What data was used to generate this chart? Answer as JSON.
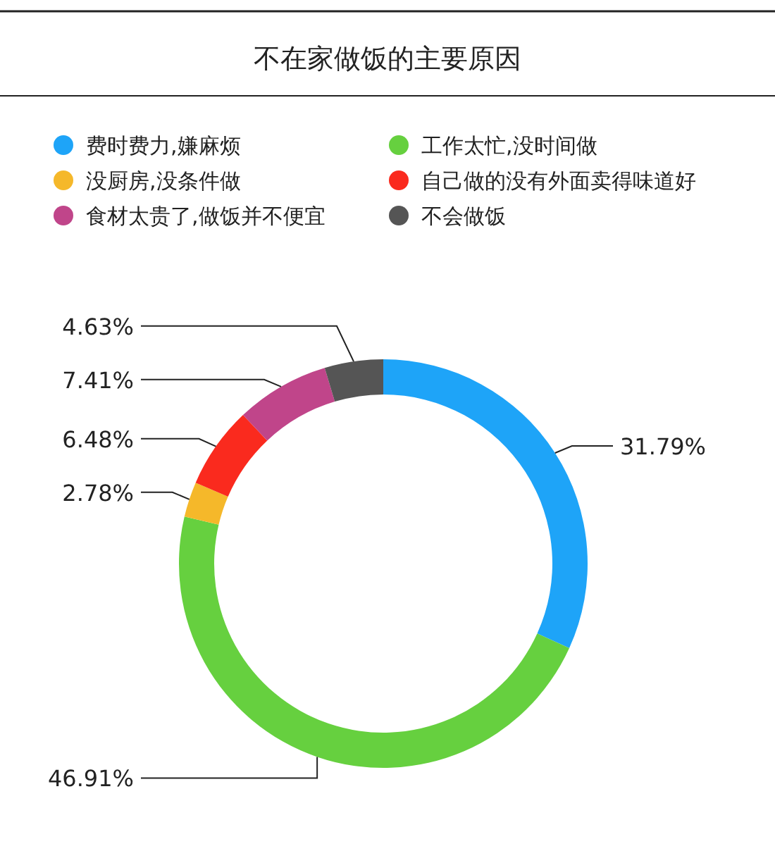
{
  "chart_data": {
    "type": "donut",
    "title": "不在家做饭的主要原因",
    "categories": [
      "费时费力,嫌麻烦",
      "工作太忙,没时间做",
      "没厨房,没条件做",
      "自己做的没有外面卖得味道好",
      "食材太贵了,做饭并不便宜",
      "不会做饭"
    ],
    "values": [
      31.79,
      46.91,
      2.78,
      6.48,
      7.41,
      4.63
    ],
    "colors": [
      "#1ea4f8",
      "#66d03f",
      "#f5b82a",
      "#fa2a1e",
      "#c0458a",
      "#555555"
    ],
    "value_labels": [
      "31.79%",
      "46.91%",
      "2.78%",
      "6.48%",
      "7.41%",
      "4.63%"
    ],
    "legend": "top"
  }
}
